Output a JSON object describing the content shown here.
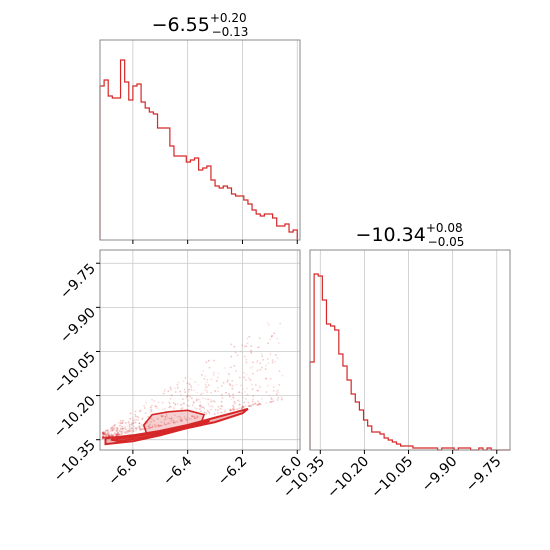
{
  "colors": {
    "accent": "#d62728",
    "grid": "#c8c8c8",
    "frame": "#888888"
  },
  "chart_data": [
    {
      "type": "histogram",
      "panel": "top-left",
      "title": {
        "value": "−6.55",
        "upper": "+0.20",
        "lower": "−0.13"
      },
      "xlim": [
        -6.72,
        -5.99
      ],
      "x_ticks": [
        -6.6,
        -6.4,
        -6.2,
        -6.0
      ],
      "bin_edges": [
        -6.72,
        -6.705,
        -6.69,
        -6.675,
        -6.66,
        -6.645,
        -6.63,
        -6.615,
        -6.6,
        -6.585,
        -6.57,
        -6.555,
        -6.54,
        -6.525,
        -6.51,
        -6.495,
        -6.48,
        -6.465,
        -6.45,
        -6.435,
        -6.42,
        -6.405,
        -6.39,
        -6.375,
        -6.36,
        -6.345,
        -6.33,
        -6.315,
        -6.3,
        -6.285,
        -6.27,
        -6.255,
        -6.24,
        -6.225,
        -6.21,
        -6.195,
        -6.18,
        -6.165,
        -6.15,
        -6.135,
        -6.12,
        -6.105,
        -6.09,
        -6.075,
        -6.06,
        -6.045,
        -6.03,
        -6.015,
        -6.0
      ],
      "counts": [
        77,
        80,
        72,
        71,
        71,
        90,
        79,
        70,
        77,
        78,
        69,
        66,
        64,
        63,
        56,
        56,
        56,
        47,
        42,
        42,
        42,
        39,
        40,
        41,
        35,
        36,
        37,
        30,
        27,
        26,
        27,
        26,
        23,
        22,
        22,
        20,
        18,
        15,
        13,
        12,
        13,
        13,
        11,
        7,
        7,
        8,
        4,
        5
      ],
      "ylim": [
        0,
        100
      ]
    },
    {
      "type": "scatter-contour",
      "panel": "bottom-left",
      "xlim": [
        -6.72,
        -5.99
      ],
      "ylim": [
        -10.385,
        -9.705
      ],
      "x_ticks": [
        -6.6,
        -6.4,
        -6.2,
        -6.0
      ],
      "y_ticks": [
        -9.75,
        -9.9,
        -10.05,
        -10.2,
        -10.35
      ],
      "x_tick_labels": [
        "−6.6",
        "−6.4",
        "−6.2",
        "−6.0"
      ],
      "y_tick_labels": [
        "−9.75",
        "−9.90",
        "−10.05",
        "−10.20",
        "−10.35"
      ],
      "contours": [
        {
          "level": "outer",
          "points": [
            [
              -6.7,
              -10.345
            ],
            [
              -6.6,
              -10.335
            ],
            [
              -6.5,
              -10.32
            ],
            [
              -6.4,
              -10.3
            ],
            [
              -6.3,
              -10.275
            ],
            [
              -6.22,
              -10.255
            ],
            [
              -6.18,
              -10.245
            ],
            [
              -6.2,
              -10.26
            ],
            [
              -6.3,
              -10.29
            ],
            [
              -6.4,
              -10.31
            ],
            [
              -6.5,
              -10.335
            ],
            [
              -6.6,
              -10.355
            ],
            [
              -6.7,
              -10.365
            ]
          ]
        },
        {
          "level": "inner",
          "points": [
            [
              -6.68,
              -10.35
            ],
            [
              -6.6,
              -10.34
            ],
            [
              -6.5,
              -10.325
            ],
            [
              -6.4,
              -10.305
            ],
            [
              -6.32,
              -10.285
            ],
            [
              -6.35,
              -10.3
            ],
            [
              -6.45,
              -10.32
            ],
            [
              -6.55,
              -10.34
            ],
            [
              -6.65,
              -10.355
            ]
          ]
        }
      ],
      "blob": [
        [
          -6.56,
          -10.3
        ],
        [
          -6.53,
          -10.265
        ],
        [
          -6.47,
          -10.255
        ],
        [
          -6.4,
          -10.25
        ],
        [
          -6.34,
          -10.265
        ],
        [
          -6.35,
          -10.29
        ],
        [
          -6.45,
          -10.31
        ],
        [
          -6.55,
          -10.33
        ]
      ]
    },
    {
      "type": "histogram",
      "panel": "bottom-right",
      "title": {
        "value": "−10.34",
        "upper": "+0.08",
        "lower": "−0.05"
      },
      "xlim": [
        -10.385,
        -9.705
      ],
      "x_ticks": [
        -10.35,
        -10.2,
        -10.05,
        -9.9,
        -9.75
      ],
      "x_tick_labels": [
        "−10.35",
        "−10.20",
        "−10.05",
        "−9.90",
        "−9.75"
      ],
      "bin_edges": [
        -10.385,
        -10.371,
        -10.357,
        -10.343,
        -10.329,
        -10.315,
        -10.301,
        -10.287,
        -10.273,
        -10.259,
        -10.245,
        -10.231,
        -10.217,
        -10.203,
        -10.189,
        -10.175,
        -10.161,
        -10.147,
        -10.133,
        -10.119,
        -10.105,
        -10.091,
        -10.077,
        -10.063,
        -10.049,
        -10.035,
        -10.021,
        -10.007,
        -9.993,
        -9.979,
        -9.965,
        -9.951,
        -9.937,
        -9.923,
        -9.909,
        -9.895,
        -9.881,
        -9.867,
        -9.853,
        -9.839,
        -9.825,
        -9.811,
        -9.797,
        -9.783,
        -9.769,
        -9.755,
        -9.741,
        -9.727,
        -9.705
      ],
      "counts": [
        44,
        88,
        87,
        75,
        63,
        62,
        60,
        48,
        42,
        35,
        28,
        24,
        20,
        15,
        12,
        9,
        9,
        8,
        6,
        5,
        4,
        3,
        2,
        2,
        2,
        1,
        1,
        1,
        1,
        1,
        1,
        0,
        1,
        1,
        1,
        0,
        1,
        1,
        1,
        0,
        0,
        1,
        0,
        1,
        0,
        0,
        0,
        0
      ],
      "ylim": [
        0,
        100
      ]
    }
  ]
}
